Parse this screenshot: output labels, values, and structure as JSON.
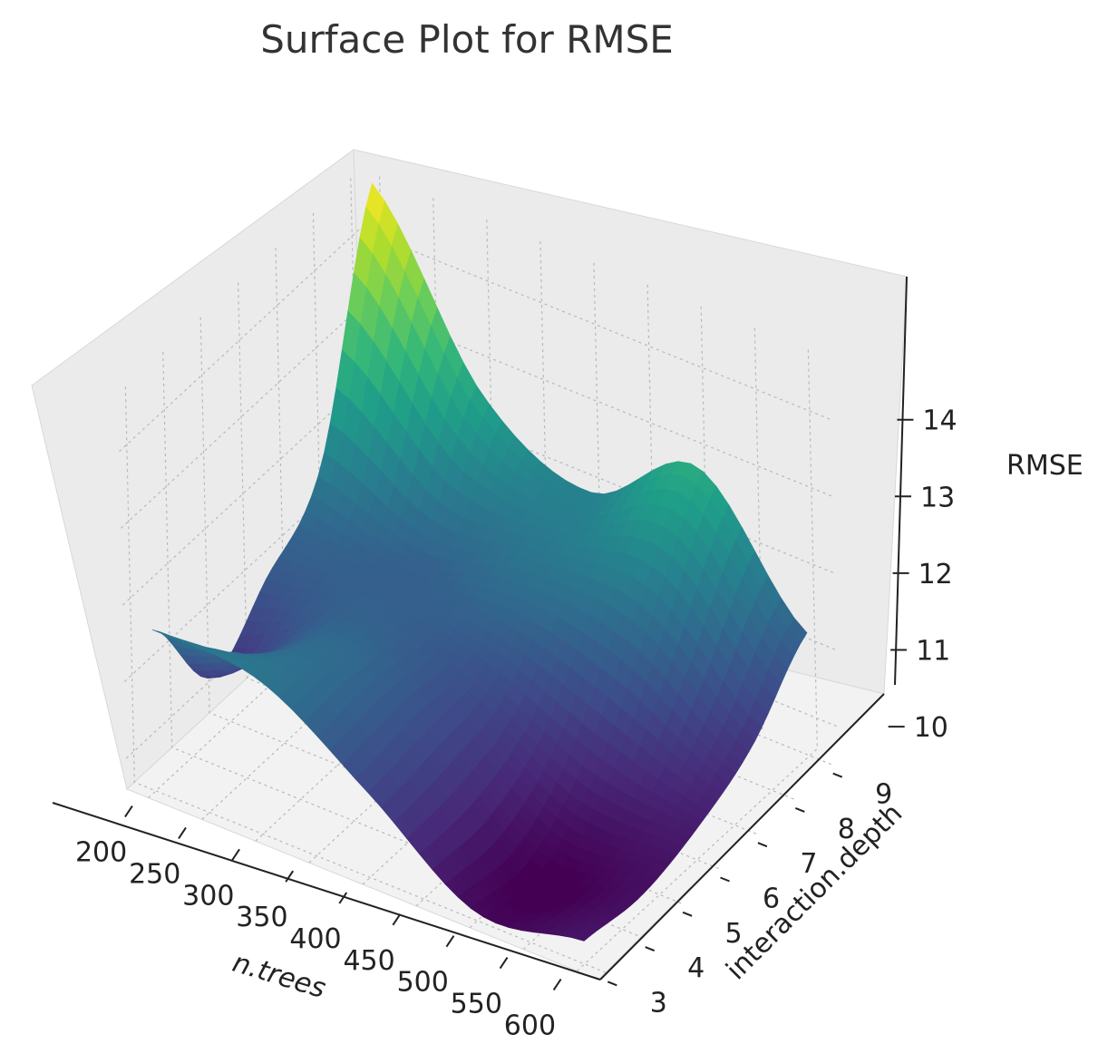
{
  "chart_data": {
    "type": "surface",
    "title": "Surface Plot for RMSE",
    "xlabel": "n.trees",
    "ylabel": "interaction.depth",
    "zlabel": "RMSE",
    "colormap": "viridis",
    "x_ticks": [
      200,
      250,
      300,
      350,
      400,
      450,
      500,
      550,
      600
    ],
    "y_ticks": [
      3,
      4,
      5,
      6,
      7,
      8,
      9
    ],
    "z_ticks": [
      10,
      11,
      12,
      13,
      14
    ],
    "xlim": [
      180,
      620
    ],
    "ylim": [
      2.8,
      9.2
    ],
    "zlim": [
      9.6,
      14.8
    ],
    "grid": true,
    "surface_peak": {
      "n.trees": 200,
      "interaction.depth": 9,
      "RMSE": 14.8
    },
    "surface_min": {
      "n.trees": 500,
      "interaction.depth": 4,
      "RMSE": 9.6
    },
    "surface_samples": {
      "n.trees": [
        200,
        300,
        400,
        500,
        600
      ],
      "interaction.depth": [
        3,
        4.5,
        6,
        7.5,
        9
      ],
      "RMSE": [
        [
          11.7,
          10.4,
          11.0,
          11.8,
          14.8
        ],
        [
          11.6,
          11.4,
          11.2,
          11.3,
          12.6
        ],
        [
          10.7,
          10.8,
          10.9,
          11.6,
          11.9
        ],
        [
          9.7,
          9.6,
          10.2,
          11.5,
          12.8
        ],
        [
          9.9,
          9.8,
          10.0,
          10.4,
          11.2
        ]
      ]
    }
  }
}
